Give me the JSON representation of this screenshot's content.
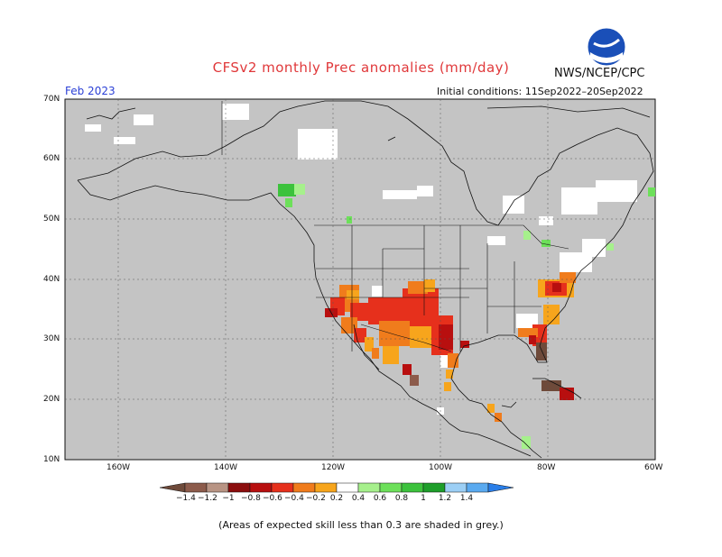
{
  "header": {
    "title": "CFSv2 monthly Prec anomalies (mm/day)",
    "agency": "NWS/NCEP/CPC",
    "month": "Feb 2023",
    "initial_conditions": "Initial conditions: 11Sep2022–20Sep2022",
    "logo_text": "NOAA"
  },
  "axes": {
    "lat_labels": [
      "70N",
      "60N",
      "50N",
      "40N",
      "30N",
      "20N",
      "10N"
    ],
    "lon_labels": [
      "160W",
      "140W",
      "120W",
      "100W",
      "80W",
      "60W"
    ]
  },
  "colorbar": {
    "labels": [
      "−1.4",
      "−1.2",
      "−1",
      "−0.8",
      "−0.6",
      "−0.4",
      "−0.2",
      "0.2",
      "0.4",
      "0.6",
      "0.8",
      "1",
      "1.2",
      "1.4"
    ],
    "colors": [
      "#6e4a3a",
      "#8c5b4b",
      "#b89484",
      "#8b0d0d",
      "#b80f0f",
      "#e6301c",
      "#f07c1c",
      "#f7a51c",
      "#ffffff",
      "#a6f08c",
      "#6de05a",
      "#3cc23c",
      "#1e9e2a",
      "#9ccff5",
      "#5aaaf0",
      "#2a7ee8"
    ]
  },
  "colors": {
    "skill_grey": "#c4c4c4",
    "land_outline": "#111111"
  },
  "footnote": "(Areas of expected skill less than 0.3 are shaded in grey.)"
}
